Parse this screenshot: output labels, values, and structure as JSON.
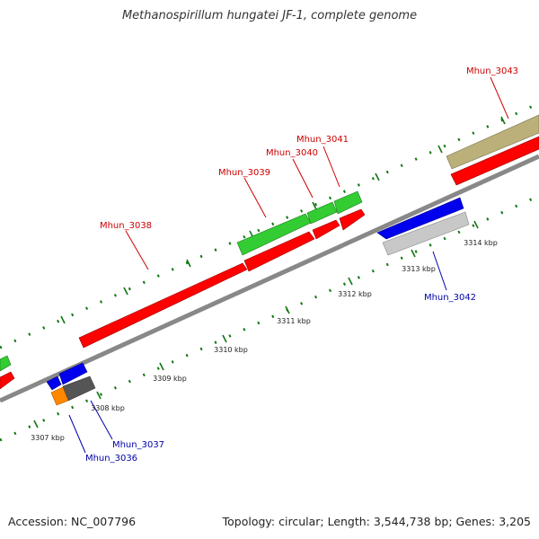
{
  "title": "Methanospirillum hungatei JF-1, complete genome",
  "footer": {
    "accession": "Accession: NC_007796",
    "summary": "Topology: circular; Length: 3,544,738 bp; Genes: 3,205"
  },
  "scale_ticks": [
    "3307 kbp",
    "3308 kbp",
    "3309 kbp",
    "3310 kbp",
    "3311 kbp",
    "3312 kbp",
    "3313 kbp",
    "3314 kbp"
  ],
  "genes": {
    "forward": [
      "Mhun_3038",
      "Mhun_3039",
      "Mhun_3040",
      "Mhun_3041",
      "Mhun_3043"
    ],
    "reverse": [
      "Mhun_3036",
      "Mhun_3037",
      "Mhun_3042"
    ]
  },
  "colors": {
    "forward_label": "#cc0000",
    "reverse_label": "#0000aa",
    "cds": "#ff0000",
    "gene_green": "#33cc33",
    "gene_blue": "#0000ee",
    "gene_grey": "#c8c8c8",
    "gene_dark": "#555555",
    "gene_orange": "#ff8800",
    "gene_khaki": "#bbb07a",
    "backbone": "#888888",
    "tick": "#117711"
  }
}
